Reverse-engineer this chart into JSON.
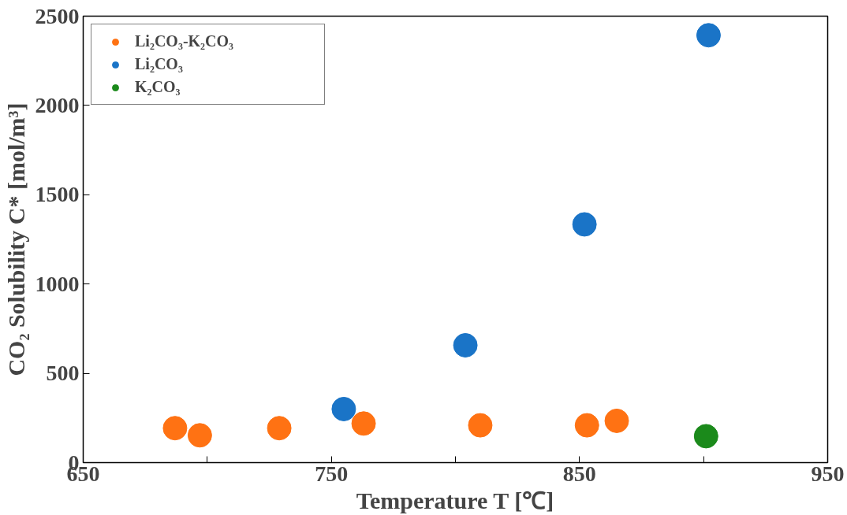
{
  "chart_data": {
    "type": "scatter",
    "xlabel": "Temperature T [℃]",
    "ylabel": "CO₂ Solubility C* [mol/m³]",
    "series": [
      {
        "name": "Li₂CO₃-K₂CO₃",
        "color": "#ff7213",
        "x": [
          687,
          697,
          729,
          763,
          810,
          853,
          865
        ],
        "values": [
          193,
          153,
          193,
          219,
          209,
          209,
          234
        ]
      },
      {
        "name": "Li₂CO₃",
        "color": "#1a74c7",
        "x": [
          755,
          804,
          852,
          902
        ],
        "values": [
          300,
          657,
          1334,
          2393
        ]
      },
      {
        "name": "K₂CO₃",
        "color": "#1b8a1b",
        "x": [
          901
        ],
        "values": [
          148
        ]
      }
    ],
    "xlim": [
      650,
      950
    ],
    "ylim": [
      0,
      2500
    ],
    "xticks": [
      650,
      {
        "value": 700,
        "label": null
      },
      750,
      {
        "value": 800,
        "label": null
      },
      850,
      {
        "value": 900,
        "label": null
      },
      950
    ],
    "yticks": [
      0,
      500,
      1000,
      1500,
      2000,
      2500
    ],
    "grid": false,
    "legend": "top left",
    "marker": "circle"
  }
}
